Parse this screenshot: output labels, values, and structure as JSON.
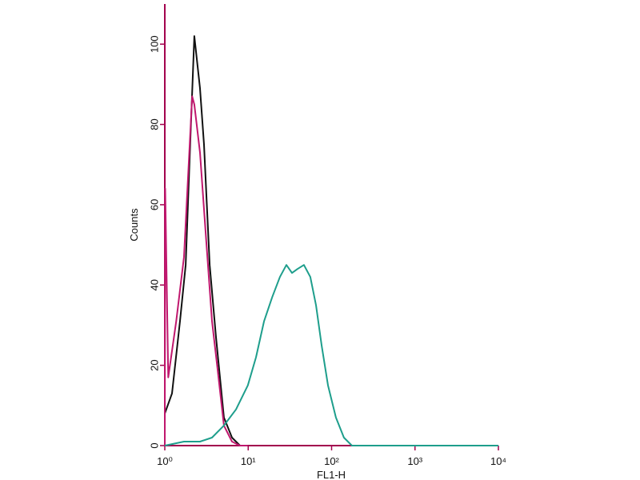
{
  "chart_data": {
    "type": "line",
    "x_label": "FL1-H",
    "y_label": "Counts",
    "xscale": "log",
    "xlim": [
      1,
      10000
    ],
    "ylim": [
      0,
      110
    ],
    "xticks": [
      {
        "value": 1,
        "label": "10⁰"
      },
      {
        "value": 10,
        "label": "10¹"
      },
      {
        "value": 100,
        "label": "10²"
      },
      {
        "value": 1000,
        "label": "10³"
      },
      {
        "value": 10000,
        "label": "10⁴"
      }
    ],
    "yticks": [
      0,
      20,
      40,
      60,
      80,
      100
    ],
    "axis_color": "#a3004e",
    "series": [
      {
        "color": "#111111",
        "x": [
          1,
          1.22,
          1.52,
          1.78,
          2.03,
          2.26,
          2.64,
          2.95,
          3.45,
          4.11,
          5.12,
          6.39,
          7.98,
          9.9
        ],
        "values": [
          8,
          13,
          31,
          45,
          77,
          102,
          89,
          75,
          45,
          27,
          7,
          2,
          0,
          0
        ]
      },
      {
        "color": "#c0186e",
        "x": [
          1,
          1.01,
          1.1,
          1.37,
          1.7,
          2.13,
          2.26,
          2.64,
          3.14,
          3.68,
          4.3,
          5.12,
          6.39,
          7.98,
          9.9
        ],
        "values": [
          0,
          64,
          17,
          31,
          47,
          87,
          85,
          73,
          51,
          31,
          19,
          5,
          1,
          0,
          0
        ]
      },
      {
        "color": "#1e9e8c",
        "x": [
          1,
          1.7,
          2.64,
          3.68,
          5.12,
          7.14,
          9.9,
          12.4,
          15.5,
          19.4,
          24.0,
          28.7,
          33.5,
          39.0,
          46.6,
          55.6,
          65.0,
          75.8,
          90.6,
          112.6,
          140.4,
          175.3,
          10000
        ],
        "values": [
          0,
          1,
          1,
          2,
          5,
          9,
          15,
          22,
          31,
          37,
          42,
          45,
          43,
          44,
          45,
          42,
          35,
          25,
          15,
          7,
          2,
          0,
          0
        ]
      }
    ]
  }
}
